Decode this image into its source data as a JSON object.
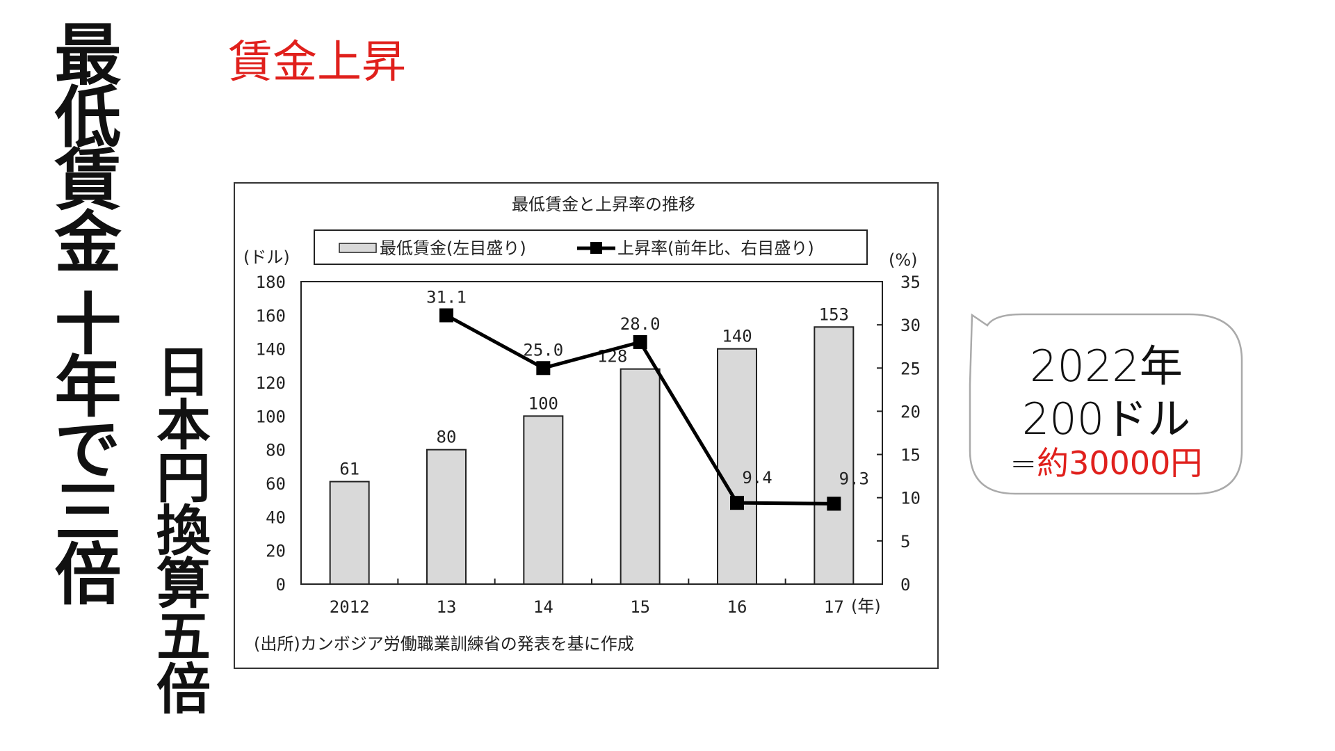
{
  "slide": {
    "vertical_title": "最低賃金 十年で三倍",
    "vertical_subtitle": "日本円換算五倍",
    "red_title": "賃金上昇",
    "callout": {
      "line1": "2022年",
      "line2": "200ドル",
      "line3_prefix": "=",
      "line3_red": "約30000円"
    },
    "accent": "#e0201c"
  },
  "chart_data": {
    "type": "bar+line",
    "title": "最低賃金と上昇率の推移",
    "categories": [
      "2012",
      "13",
      "14",
      "15",
      "16",
      "17"
    ],
    "x_unit": "(年)",
    "series": [
      {
        "name": "最低賃金(左目盛り)",
        "type": "bar",
        "axis": "left",
        "values": [
          61,
          80,
          100,
          128,
          140,
          153
        ],
        "color": "#d9d9d9"
      },
      {
        "name": "上昇率(前年比、右目盛り)",
        "type": "line",
        "axis": "right",
        "values": [
          null,
          31.1,
          25.0,
          28.0,
          9.4,
          9.3
        ],
        "labels": [
          "",
          "31.1",
          "25.0",
          "28.0",
          "9.4",
          "9.3"
        ],
        "color": "#000000"
      }
    ],
    "ylabel_left": "(ドル)",
    "ylim_left": [
      0,
      180
    ],
    "yticks_left": [
      0,
      20,
      40,
      60,
      80,
      100,
      120,
      140,
      160,
      180
    ],
    "ylabel_right": "(%)",
    "ylim_right": [
      0,
      35
    ],
    "yticks_right": [
      0,
      5,
      10,
      15,
      20,
      25,
      30,
      35
    ],
    "legend": "top",
    "source": "(出所)カンボジア労働職業訓練省の発表を基に作成"
  }
}
